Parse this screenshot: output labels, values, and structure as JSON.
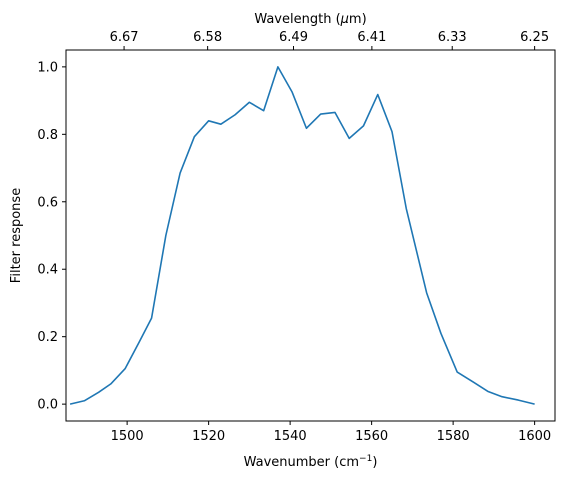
{
  "chart_data": {
    "type": "line",
    "title": "",
    "xlabel": "Wavenumber (cm",
    "xlabel_sup": "−1",
    "xlabel_suffix": ")",
    "ylabel": "Filter response",
    "x2label": "Wavelength (",
    "x2label_mu": "μ",
    "x2label_suffix": "m)",
    "xlim": [
      1485,
      1605
    ],
    "ylim": [
      -0.05,
      1.05
    ],
    "grid": false,
    "legend": "none",
    "x_ticks": [
      1500,
      1520,
      1540,
      1560,
      1580,
      1600
    ],
    "x_tick_labels": [
      "1500",
      "1520",
      "1540",
      "1560",
      "1580",
      "1600"
    ],
    "y_ticks": [
      0.0,
      0.2,
      0.4,
      0.6,
      0.8,
      1.0
    ],
    "y_tick_labels": [
      "0.0",
      "0.2",
      "0.4",
      "0.6",
      "0.8",
      "1.0"
    ],
    "x2_ticks": [
      6.67,
      6.58,
      6.49,
      6.41,
      6.33,
      6.25
    ],
    "x2_tick_labels": [
      "6.67",
      "6.58",
      "6.49",
      "6.41",
      "6.33",
      "6.25"
    ],
    "series": [
      {
        "color": "#1f77b4",
        "x": [
          1486,
          1489.5,
          1493,
          1496,
          1499.5,
          1503,
          1506,
          1509.5,
          1513,
          1516.5,
          1520,
          1523,
          1526.5,
          1530,
          1533.5,
          1537,
          1540.5,
          1544,
          1547.5,
          1551,
          1554.5,
          1558,
          1561.5,
          1565,
          1568.5,
          1573.5,
          1577,
          1581,
          1585,
          1588.5,
          1592,
          1596,
          1600
        ],
        "y": [
          0.0,
          0.01,
          0.035,
          0.06,
          0.105,
          0.185,
          0.255,
          0.5,
          0.685,
          0.793,
          0.84,
          0.83,
          0.858,
          0.895,
          0.87,
          1.0,
          0.925,
          0.818,
          0.86,
          0.865,
          0.788,
          0.825,
          0.918,
          0.808,
          0.58,
          0.33,
          0.21,
          0.095,
          0.065,
          0.038,
          0.022,
          0.012,
          0.0
        ]
      }
    ]
  }
}
